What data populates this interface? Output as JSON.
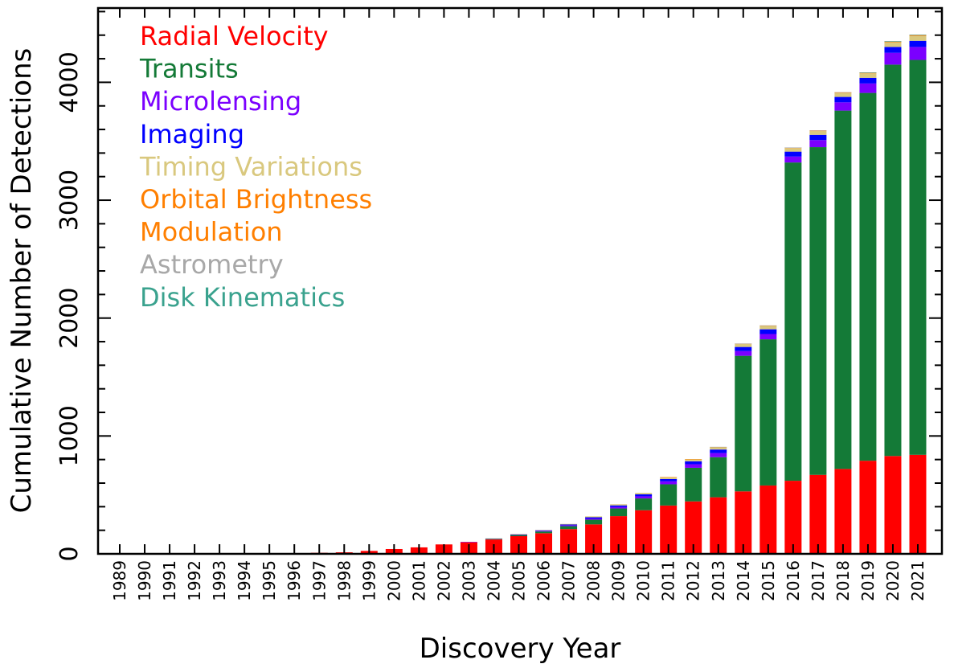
{
  "chart_data": {
    "type": "bar",
    "stacked": true,
    "xlabel": "Discovery Year",
    "ylabel": "Cumulative Number of Detections",
    "ylim": [
      0,
      4630
    ],
    "y_ticks": [
      "0",
      "1000",
      "2000",
      "3000",
      "4000"
    ],
    "grid": false,
    "legend_position": "top-left",
    "categories": [
      "1989",
      "1990",
      "1991",
      "1992",
      "1993",
      "1994",
      "1995",
      "1996",
      "1997",
      "1998",
      "1999",
      "2000",
      "2001",
      "2002",
      "2003",
      "2004",
      "2005",
      "2006",
      "2007",
      "2008",
      "2009",
      "2010",
      "2011",
      "2012",
      "2013",
      "2014",
      "2015",
      "2016",
      "2017",
      "2018",
      "2019",
      "2020",
      "2021"
    ],
    "series": [
      {
        "name": "Radial Velocity",
        "color": "#ff0000",
        "values": [
          1,
          1,
          1,
          1,
          1,
          1,
          2,
          6,
          9,
          13,
          25,
          41,
          55,
          80,
          100,
          122,
          150,
          175,
          210,
          250,
          320,
          370,
          410,
          445,
          480,
          530,
          580,
          620,
          670,
          720,
          790,
          830,
          840
        ]
      },
      {
        "name": "Transits",
        "color": "#147a37",
        "values": [
          0,
          0,
          0,
          0,
          0,
          0,
          0,
          0,
          0,
          0,
          0,
          0,
          0,
          0,
          0,
          5,
          10,
          15,
          25,
          40,
          65,
          100,
          180,
          285,
          340,
          1150,
          1240,
          2700,
          2780,
          3040,
          3120,
          3320,
          3350
        ]
      },
      {
        "name": "Microlensing",
        "color": "#7b00ff",
        "values": [
          0,
          0,
          0,
          0,
          0,
          0,
          0,
          0,
          0,
          0,
          0,
          0,
          0,
          0,
          1,
          2,
          4,
          6,
          8,
          10,
          13,
          18,
          25,
          30,
          35,
          40,
          45,
          50,
          60,
          70,
          80,
          100,
          110
        ]
      },
      {
        "name": "Imaging",
        "color": "#0000ff",
        "values": [
          0,
          0,
          0,
          0,
          0,
          0,
          0,
          0,
          0,
          0,
          0,
          0,
          0,
          0,
          0,
          1,
          2,
          4,
          6,
          10,
          13,
          17,
          20,
          25,
          30,
          35,
          40,
          42,
          44,
          46,
          48,
          50,
          52
        ]
      },
      {
        "name": "Timing Variations",
        "color": "#d9c87e",
        "values": [
          0,
          0,
          0,
          0,
          0,
          0,
          0,
          0,
          0,
          0,
          0,
          0,
          0,
          0,
          0,
          1,
          2,
          3,
          5,
          8,
          10,
          12,
          15,
          18,
          20,
          25,
          28,
          30,
          32,
          34,
          38,
          40,
          42
        ]
      },
      {
        "name": "Orbital Brightness Modulation",
        "color": "#ff7f00",
        "values": [
          0,
          0,
          0,
          0,
          0,
          0,
          0,
          0,
          0,
          0,
          0,
          0,
          0,
          0,
          0,
          0,
          0,
          0,
          0,
          0,
          0,
          0,
          1,
          1,
          2,
          3,
          4,
          4,
          5,
          5,
          6,
          7,
          8
        ]
      },
      {
        "name": "Astrometry",
        "color": "#a8a8a8",
        "values": [
          0,
          0,
          0,
          0,
          0,
          0,
          0,
          0,
          0,
          0,
          0,
          0,
          0,
          0,
          0,
          0,
          0,
          0,
          0,
          0,
          0,
          0,
          0,
          0,
          1,
          1,
          1,
          1,
          1,
          1,
          1,
          1,
          1
        ]
      },
      {
        "name": "Disk Kinematics",
        "color": "#3aa28e",
        "values": [
          0,
          0,
          0,
          0,
          0,
          0,
          0,
          0,
          0,
          0,
          0,
          0,
          0,
          0,
          0,
          0,
          0,
          0,
          0,
          0,
          0,
          0,
          0,
          0,
          0,
          0,
          0,
          0,
          0,
          0,
          1,
          1,
          1
        ]
      }
    ],
    "legend": [
      {
        "label": "Radial Velocity",
        "color": "#ff0000"
      },
      {
        "label": "Transits",
        "color": "#147a37"
      },
      {
        "label": "Microlensing",
        "color": "#7b00ff"
      },
      {
        "label": "Imaging",
        "color": "#0000ff"
      },
      {
        "label": "Timing Variations",
        "color": "#d9c87e"
      },
      {
        "label": "Orbital Brightness",
        "color": "#ff7f00"
      },
      {
        "label": "Modulation",
        "color": "#ff7f00"
      },
      {
        "label": "Astrometry",
        "color": "#a8a8a8"
      },
      {
        "label": "Disk Kinematics",
        "color": "#3aa28e"
      }
    ]
  }
}
